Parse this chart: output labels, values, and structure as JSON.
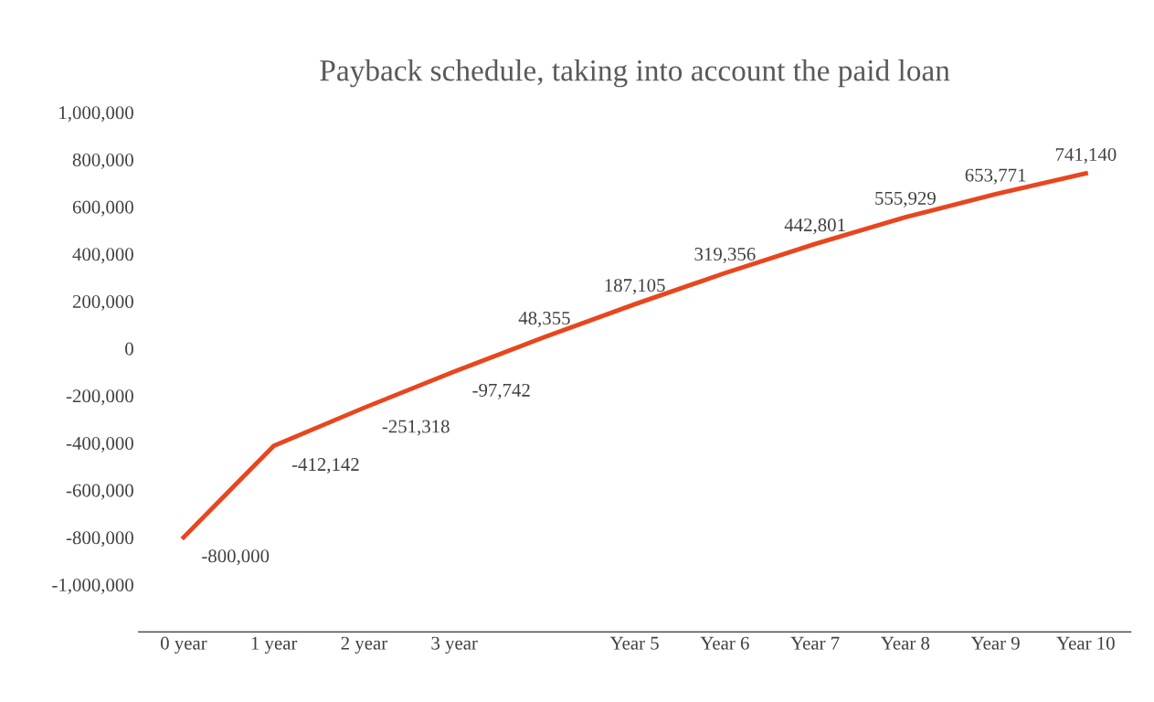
{
  "chart_data": {
    "type": "line",
    "title": "Payback schedule, taking into account the paid loan",
    "categories": [
      "0 year",
      "1 year",
      "2 year",
      "3 year",
      null,
      "Year 5",
      "Year 6",
      "Year 7",
      "Year 8",
      "Year 9",
      "Year 10"
    ],
    "series": [
      {
        "color": "#e8461e",
        "values": [
          -800000,
          -412142,
          -251318,
          -97742,
          48355,
          187105,
          319356,
          442801,
          555929,
          653771,
          741140
        ],
        "value_labels": [
          "-800,000",
          "-412,142",
          "-251,318",
          "-97,742",
          "48,355",
          "187,105",
          "319,356",
          "442,801",
          "555,929",
          "653,771",
          "741,140"
        ]
      }
    ],
    "ylim": [
      -1200000,
      1000000
    ],
    "yticks": [
      {
        "value": -1000000,
        "label": "-1,000,000"
      },
      {
        "value": -800000,
        "label": "-800,000"
      },
      {
        "value": -600000,
        "label": "-600,000"
      },
      {
        "value": -400000,
        "label": "-400,000"
      },
      {
        "value": -200000,
        "label": "-200,000"
      },
      0,
      {
        "value": 200000,
        "label": "200,000"
      },
      {
        "value": 400000,
        "label": "400,000"
      },
      {
        "value": 600000,
        "label": "600,000"
      },
      {
        "value": 800000,
        "label": "800,000"
      },
      {
        "value": 1000000,
        "label": "1,000,000"
      }
    ],
    "grid": false,
    "legend": false,
    "marker": "none",
    "line_style": "solid"
  }
}
